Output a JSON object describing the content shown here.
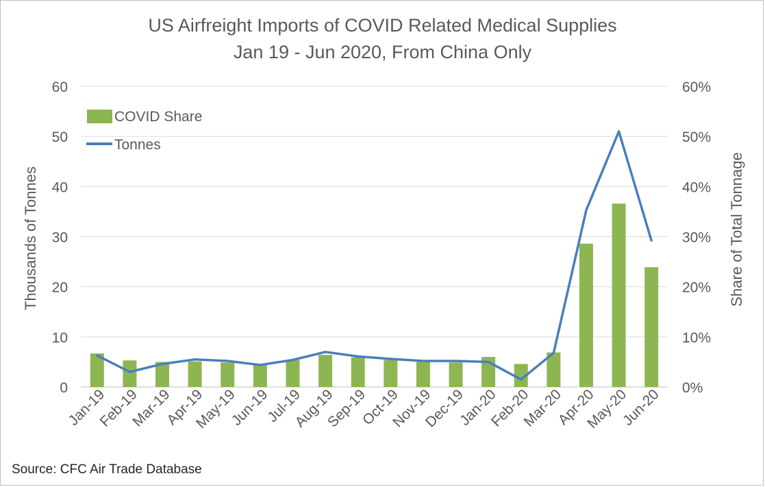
{
  "title_line1": "US Airfreight Imports of COVID Related Medical Supplies",
  "title_line2": "Jan 19 - Jun 2020, From China Only",
  "source": "Source: CFC Air Trade Database",
  "chart_data": {
    "type": "bar+line",
    "categories": [
      "Jan-19",
      "Feb-19",
      "Mar-19",
      "Apr-19",
      "May-19",
      "Jun-19",
      "Jul-19",
      "Aug-19",
      "Sep-19",
      "Oct-19",
      "Nov-19",
      "Dec-19",
      "Jan-20",
      "Feb-20",
      "Mar-20",
      "Apr-20",
      "May-20",
      "Jun-20"
    ],
    "series": [
      {
        "name": "COVID Share",
        "kind": "bar",
        "axis": "right",
        "color": "#8db653",
        "values": [
          0.067,
          0.053,
          0.05,
          0.051,
          0.049,
          0.044,
          0.054,
          0.064,
          0.059,
          0.054,
          0.05,
          0.049,
          0.06,
          0.046,
          0.069,
          0.286,
          0.366,
          0.239
        ]
      },
      {
        "name": "Tonnes",
        "kind": "line",
        "axis": "left",
        "color": "#4a7ebb",
        "values": [
          6.3,
          3.0,
          4.6,
          5.5,
          5.2,
          4.4,
          5.4,
          7.0,
          6.1,
          5.6,
          5.2,
          5.2,
          5.0,
          1.5,
          6.8,
          35.3,
          51.0,
          29.2
        ]
      }
    ],
    "ylabel": "Thousands of Tonnes",
    "y2label": "Share of Total Tonnage",
    "ylim": [
      0,
      60
    ],
    "y2lim": [
      0,
      0.6
    ],
    "yticks": [
      "0",
      "10",
      "20",
      "30",
      "40",
      "50",
      "60"
    ],
    "y2ticks": [
      "0%",
      "10%",
      "20%",
      "30%",
      "40%",
      "50%",
      "60%"
    ],
    "grid": true,
    "legend_position": "top-left"
  }
}
